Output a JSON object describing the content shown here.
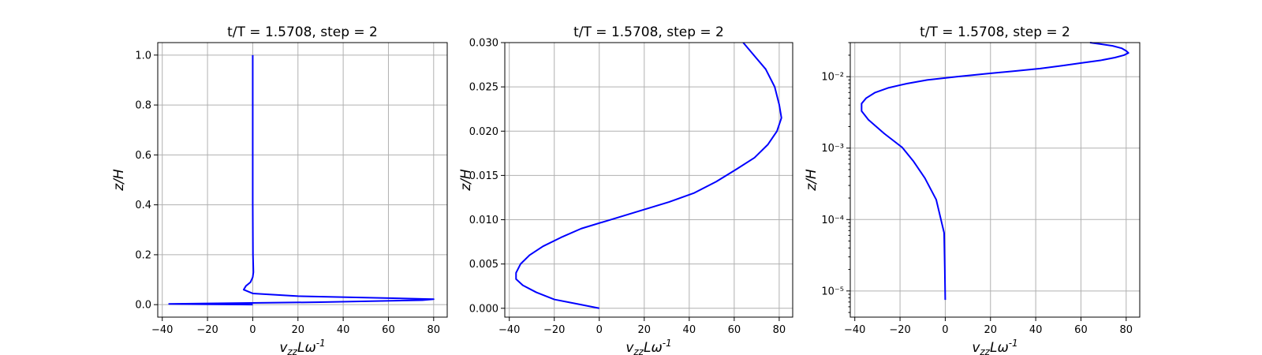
{
  "chart_data": [
    {
      "type": "line",
      "title": "t/T = 1.5708, step = 2",
      "xlabel": "v_{zz}Lω^{-1}",
      "ylabel": "z/H",
      "xlim": [
        -42,
        86
      ],
      "ylim": [
        -0.05,
        1.05
      ],
      "yscale": "linear",
      "grid": true,
      "x_ticks": [
        -40,
        -20,
        0,
        20,
        40,
        60,
        80
      ],
      "x_tick_labels": [
        "−40",
        "−20",
        "0",
        "20",
        "40",
        "60",
        "80"
      ],
      "y_ticks": [
        0.0,
        0.2,
        0.4,
        0.6,
        0.8,
        1.0
      ],
      "y_tick_labels": [
        "0.0",
        "0.2",
        "0.4",
        "0.6",
        "0.8",
        "1.0"
      ],
      "series": [
        {
          "color": "#0000ff",
          "points": [
            [
              0,
              0.0
            ],
            [
              -37,
              0.003
            ],
            [
              30,
              0.01
            ],
            [
              75,
              0.018
            ],
            [
              80,
              0.022
            ],
            [
              62,
              0.026
            ],
            [
              20,
              0.034
            ],
            [
              0,
              0.045
            ],
            [
              -4,
              0.06
            ],
            [
              -3,
              0.075
            ],
            [
              -1,
              0.09
            ],
            [
              0,
              0.11
            ],
            [
              0.3,
              0.13
            ],
            [
              0.1,
              0.2
            ],
            [
              0,
              0.4
            ],
            [
              0,
              0.6
            ],
            [
              0,
              0.8
            ],
            [
              0,
              1.0
            ]
          ]
        }
      ]
    },
    {
      "type": "line",
      "title": "t/T = 1.5708, step = 2",
      "xlabel": "v_{zz}Lω^{-1}",
      "ylabel": "z/H",
      "xlim": [
        -42,
        86
      ],
      "ylim": [
        -0.001,
        0.03
      ],
      "yscale": "linear",
      "grid": true,
      "x_ticks": [
        -40,
        -20,
        0,
        20,
        40,
        60,
        80
      ],
      "x_tick_labels": [
        "−40",
        "−20",
        "0",
        "20",
        "40",
        "60",
        "80"
      ],
      "y_ticks": [
        0.0,
        0.005,
        0.01,
        0.015,
        0.02,
        0.025,
        0.03
      ],
      "y_tick_labels": [
        "0.000",
        "0.005",
        "0.010",
        "0.015",
        "0.020",
        "0.025",
        "0.030"
      ],
      "series": [
        {
          "color": "#0000ff",
          "points": [
            [
              0,
              0.0
            ],
            [
              -10,
              0.0005
            ],
            [
              -20,
              0.001
            ],
            [
              -28,
              0.0018
            ],
            [
              -34,
              0.0026
            ],
            [
              -37,
              0.0033
            ],
            [
              -37,
              0.004
            ],
            [
              -35,
              0.005
            ],
            [
              -31,
              0.006
            ],
            [
              -25,
              0.007
            ],
            [
              -17,
              0.008
            ],
            [
              -8,
              0.009
            ],
            [
              5,
              0.01
            ],
            [
              18,
              0.011
            ],
            [
              31,
              0.012
            ],
            [
              42,
              0.013
            ],
            [
              52,
              0.0143
            ],
            [
              61,
              0.0157
            ],
            [
              69,
              0.017
            ],
            [
              75,
              0.0185
            ],
            [
              79,
              0.02
            ],
            [
              81,
              0.0215
            ],
            [
              80,
              0.023
            ],
            [
              78,
              0.025
            ],
            [
              74,
              0.027
            ],
            [
              69,
              0.0285
            ],
            [
              64,
              0.03
            ]
          ]
        }
      ]
    },
    {
      "type": "line",
      "title": "t/T = 1.5708, step = 2",
      "xlabel": "v_{zz}Lω^{-1}",
      "ylabel": "z/H",
      "xlim": [
        -42,
        86
      ],
      "ylim": [
        4.3e-06,
        0.03
      ],
      "yscale": "log",
      "grid": true,
      "x_ticks": [
        -40,
        -20,
        0,
        20,
        40,
        60,
        80
      ],
      "x_tick_labels": [
        "−40",
        "−20",
        "0",
        "20",
        "40",
        "60",
        "80"
      ],
      "y_ticks": [
        1e-05,
        0.0001,
        0.001,
        0.01
      ],
      "y_tick_labels": [
        "10⁻⁵",
        "10⁻⁴",
        "10⁻³",
        "10⁻²"
      ],
      "series": [
        {
          "color": "#0000ff",
          "points": [
            [
              0,
              7.5e-06
            ],
            [
              -0.2,
              2e-05
            ],
            [
              -0.5,
              6.5e-05
            ],
            [
              -4,
              0.00019
            ],
            [
              -9,
              0.00038
            ],
            [
              -14,
              0.00065
            ],
            [
              -19,
              0.00102
            ],
            [
              -27,
              0.0016
            ],
            [
              -34,
              0.0025
            ],
            [
              -37,
              0.0033
            ],
            [
              -37,
              0.0042
            ],
            [
              -35,
              0.005
            ],
            [
              -31,
              0.006
            ],
            [
              -25,
              0.007
            ],
            [
              -17,
              0.008
            ],
            [
              -8,
              0.009
            ],
            [
              5,
              0.01
            ],
            [
              18,
              0.011
            ],
            [
              31,
              0.012
            ],
            [
              42,
              0.013
            ],
            [
              52,
              0.0143
            ],
            [
              61,
              0.0157
            ],
            [
              69,
              0.017
            ],
            [
              75,
              0.0185
            ],
            [
              79,
              0.02
            ],
            [
              81,
              0.0215
            ],
            [
              80,
              0.023
            ],
            [
              78,
              0.025
            ],
            [
              74,
              0.027
            ],
            [
              69,
              0.0285
            ],
            [
              64,
              0.03
            ]
          ]
        }
      ]
    }
  ]
}
